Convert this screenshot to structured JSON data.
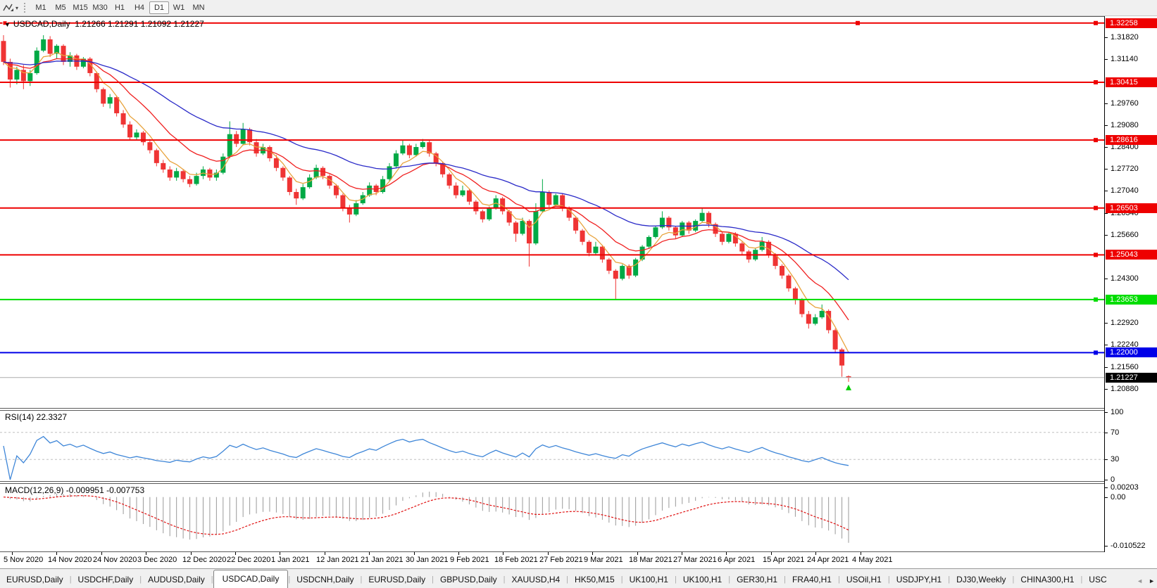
{
  "toolbar": {
    "dropdown_arrow": "▾",
    "timeframes": [
      "M1",
      "M5",
      "M15",
      "M30",
      "H1",
      "H4",
      "D1",
      "W1",
      "MN"
    ],
    "active_timeframe": "D1"
  },
  "chart": {
    "marker": "▼",
    "symbol_label": "USDCAD,Daily",
    "ohlc_label": "1.21266 1.21291 1.21092 1.21227"
  },
  "price_axis": {
    "plain_ticks": [
      "1.31820",
      "1.31140",
      "1.29760",
      "1.29080",
      "1.28400",
      "1.27720",
      "1.27040",
      "1.26340",
      "1.25660",
      "1.24300",
      "1.22920",
      "1.22240",
      "1.21560",
      "1.20880"
    ],
    "current": {
      "text": "1.21227",
      "bg": "#000000"
    }
  },
  "rsi": {
    "label": "RSI(14) 22.3327",
    "axis_ticks": [
      {
        "text": "100",
        "value": 100
      },
      {
        "text": "70",
        "value": 70
      },
      {
        "text": "30",
        "value": 30
      },
      {
        "text": "0",
        "value": 0
      }
    ],
    "line_color": "#3E86D8",
    "level_color": "#C0C0C0"
  },
  "macd": {
    "label": "MACD(12,26,9) -0.009951 -0.007753",
    "axis_ticks": [
      {
        "text": "0.00203",
        "value": 0.00203
      },
      {
        "text": "0.00",
        "value": 0.0
      },
      {
        "text": "-0.010522",
        "value": -0.010522
      }
    ],
    "histogram_color": "#999999",
    "signal_color": "#E01010"
  },
  "tabs": {
    "items": [
      "EURUSD,Daily",
      "USDCHF,Daily",
      "AUDUSD,Daily",
      "USDCAD,Daily",
      "USDCNH,Daily",
      "EURUSD,Daily",
      "GBPUSD,Daily",
      "XAUUSD,H4",
      "HK50,M15",
      "UK100,H1",
      "UK100,H1",
      "GER30,H1",
      "FRA40,H1",
      "USOil,H1",
      "USDJPY,H1",
      "DJ30,Weekly",
      "CHINA300,H1",
      "USC"
    ],
    "active_index": 3,
    "scroll_left": "◄",
    "scroll_right": "►"
  },
  "chart_data": {
    "type": "candlestick",
    "symbol": "USDCAD",
    "timeframe": "Daily",
    "ohlc_current": {
      "open": 1.21266,
      "high": 1.21291,
      "low": 1.21092,
      "close": 1.21227
    },
    "ylim": [
      1.2028,
      1.3245
    ],
    "up_color": "#00A945",
    "down_color": "#EF3434",
    "levels": [
      {
        "price": 1.32258,
        "color": "#EE0000",
        "label": "1.32258"
      },
      {
        "price": 1.30415,
        "color": "#EE0000",
        "label": "1.30415"
      },
      {
        "price": 1.28616,
        "color": "#EE0000",
        "label": "1.28616"
      },
      {
        "price": 1.26503,
        "color": "#EE0000",
        "label": "1.26503"
      },
      {
        "price": 1.25043,
        "color": "#EE0000",
        "label": "1.25043"
      },
      {
        "price": 1.23653,
        "color": "#00DD00",
        "label": "1.23653"
      },
      {
        "price": 1.22,
        "color": "#0000E8",
        "label": "1.22000"
      }
    ],
    "current_price": 1.21227,
    "moving_averages": [
      {
        "period": 5,
        "color": "#E8A33C",
        "name": "fast"
      },
      {
        "period": 13,
        "color": "#F02020",
        "name": "medium"
      },
      {
        "period": 34,
        "color": "#2A2AC8",
        "name": "slow"
      }
    ],
    "indicators": [
      {
        "name": "RSI",
        "period": 14,
        "value": 22.3327,
        "levels": [
          70,
          30
        ]
      },
      {
        "name": "MACD",
        "fast": 12,
        "slow": 26,
        "signal": 9,
        "value": -0.009951,
        "signal_value": -0.007753,
        "range": [
          -0.010522,
          0.00203
        ]
      }
    ],
    "last_candle_arrow": {
      "color": "#00CC00"
    },
    "x_dates": [
      "5 Nov 2020",
      "14 Nov 2020",
      "24 Nov 2020",
      "3 Dec 2020",
      "12 Dec 2020",
      "22 Dec 2020",
      "1 Jan 2021",
      "12 Jan 2021",
      "21 Jan 2021",
      "30 Jan 2021",
      "9 Feb 2021",
      "18 Feb 2021",
      "27 Feb 2021",
      "9 Mar 2021",
      "18 Mar 2021",
      "27 Mar 2021",
      "6 Apr 2021",
      "15 Apr 2021",
      "24 Apr 2021",
      "4 May 2021"
    ],
    "candles": [
      [
        1.317,
        1.3188,
        1.3095,
        1.3105
      ],
      [
        1.3105,
        1.3115,
        1.3025,
        1.305
      ],
      [
        1.305,
        1.309,
        1.3035,
        1.308
      ],
      [
        1.308,
        1.3095,
        1.302,
        1.3045
      ],
      [
        1.3045,
        1.308,
        1.303,
        1.307
      ],
      [
        1.307,
        1.315,
        1.3065,
        1.314
      ],
      [
        1.314,
        1.3188,
        1.3135,
        1.3175
      ],
      [
        1.3175,
        1.3185,
        1.312,
        1.313
      ],
      [
        1.313,
        1.316,
        1.3115,
        1.3155
      ],
      [
        1.3155,
        1.316,
        1.3095,
        1.3105
      ],
      [
        1.3105,
        1.3135,
        1.309,
        1.3125
      ],
      [
        1.3125,
        1.313,
        1.308,
        1.309
      ],
      [
        1.309,
        1.312,
        1.3085,
        1.3115
      ],
      [
        1.3115,
        1.312,
        1.306,
        1.307
      ],
      [
        1.307,
        1.3075,
        1.301,
        1.302
      ],
      [
        1.302,
        1.3025,
        1.2965,
        1.2975
      ],
      [
        1.2975,
        1.3005,
        1.296,
        1.2995
      ],
      [
        1.2995,
        1.3,
        1.2935,
        1.2945
      ],
      [
        1.2945,
        1.2955,
        1.29,
        1.291
      ],
      [
        1.291,
        1.292,
        1.286,
        1.287
      ],
      [
        1.287,
        1.2895,
        1.286,
        1.2885
      ],
      [
        1.2885,
        1.289,
        1.2845,
        1.2855
      ],
      [
        1.2855,
        1.2865,
        1.282,
        1.283
      ],
      [
        1.283,
        1.2835,
        1.278,
        1.279
      ],
      [
        1.279,
        1.28,
        1.276,
        1.277
      ],
      [
        1.277,
        1.278,
        1.2735,
        1.2745
      ],
      [
        1.2745,
        1.2775,
        1.2735,
        1.2765
      ],
      [
        1.2765,
        1.277,
        1.273,
        1.274
      ],
      [
        1.274,
        1.275,
        1.2715,
        1.2725
      ],
      [
        1.2725,
        1.276,
        1.272,
        1.275
      ],
      [
        1.275,
        1.278,
        1.274,
        1.277
      ],
      [
        1.277,
        1.2775,
        1.2735,
        1.2745
      ],
      [
        1.2745,
        1.277,
        1.2735,
        1.276
      ],
      [
        1.276,
        1.282,
        1.2755,
        1.281
      ],
      [
        1.281,
        1.292,
        1.2805,
        1.288
      ],
      [
        1.288,
        1.289,
        1.284,
        1.285
      ],
      [
        1.285,
        1.2915,
        1.2845,
        1.2895
      ],
      [
        1.2895,
        1.29,
        1.2845,
        1.2855
      ],
      [
        1.2855,
        1.2865,
        1.281,
        1.282
      ],
      [
        1.282,
        1.285,
        1.2815,
        1.284
      ],
      [
        1.284,
        1.2845,
        1.2795,
        1.2805
      ],
      [
        1.2805,
        1.2815,
        1.2765,
        1.2775
      ],
      [
        1.2775,
        1.278,
        1.2735,
        1.2745
      ],
      [
        1.2745,
        1.275,
        1.269,
        1.27
      ],
      [
        1.27,
        1.271,
        1.266,
        1.268
      ],
      [
        1.268,
        1.2725,
        1.2675,
        1.2715
      ],
      [
        1.2715,
        1.2755,
        1.271,
        1.2745
      ],
      [
        1.2745,
        1.2785,
        1.274,
        1.2775
      ],
      [
        1.2775,
        1.278,
        1.274,
        1.275
      ],
      [
        1.275,
        1.2755,
        1.271,
        1.272
      ],
      [
        1.272,
        1.2725,
        1.268,
        1.269
      ],
      [
        1.269,
        1.2695,
        1.264,
        1.265
      ],
      [
        1.265,
        1.266,
        1.2605,
        1.263
      ],
      [
        1.263,
        1.2675,
        1.2625,
        1.2665
      ],
      [
        1.2665,
        1.27,
        1.266,
        1.269
      ],
      [
        1.269,
        1.273,
        1.2685,
        1.272
      ],
      [
        1.272,
        1.2725,
        1.269,
        1.27
      ],
      [
        1.27,
        1.275,
        1.2695,
        1.274
      ],
      [
        1.274,
        1.279,
        1.2735,
        1.278
      ],
      [
        1.278,
        1.283,
        1.2775,
        1.282
      ],
      [
        1.282,
        1.286,
        1.2815,
        1.2845
      ],
      [
        1.2845,
        1.285,
        1.2805,
        1.2815
      ],
      [
        1.2815,
        1.285,
        1.281,
        1.284
      ],
      [
        1.284,
        1.2865,
        1.2835,
        1.2855
      ],
      [
        1.2855,
        1.286,
        1.281,
        1.282
      ],
      [
        1.282,
        1.2825,
        1.278,
        1.279
      ],
      [
        1.279,
        1.2795,
        1.2745,
        1.2755
      ],
      [
        1.2755,
        1.276,
        1.271,
        1.272
      ],
      [
        1.272,
        1.273,
        1.268,
        1.269
      ],
      [
        1.269,
        1.272,
        1.2685,
        1.2705
      ],
      [
        1.2705,
        1.271,
        1.266,
        1.267
      ],
      [
        1.267,
        1.2675,
        1.263,
        1.264
      ],
      [
        1.264,
        1.2645,
        1.2605,
        1.2615
      ],
      [
        1.2615,
        1.2655,
        1.261,
        1.265
      ],
      [
        1.265,
        1.269,
        1.2645,
        1.268
      ],
      [
        1.268,
        1.2685,
        1.263,
        1.264
      ],
      [
        1.264,
        1.2645,
        1.2595,
        1.2605
      ],
      [
        1.2605,
        1.261,
        1.2545,
        1.257
      ],
      [
        1.257,
        1.262,
        1.2565,
        1.261
      ],
      [
        1.261,
        1.2615,
        1.2468,
        1.254
      ],
      [
        1.254,
        1.2665,
        1.2535,
        1.264
      ],
      [
        1.264,
        1.274,
        1.2635,
        1.27
      ],
      [
        1.27,
        1.2705,
        1.265,
        1.266
      ],
      [
        1.266,
        1.2695,
        1.2655,
        1.269
      ],
      [
        1.269,
        1.2695,
        1.264,
        1.265
      ],
      [
        1.265,
        1.2655,
        1.261,
        1.262
      ],
      [
        1.262,
        1.2625,
        1.257,
        1.258
      ],
      [
        1.258,
        1.2585,
        1.2535,
        1.2545
      ],
      [
        1.2545,
        1.255,
        1.25,
        1.251
      ],
      [
        1.251,
        1.2545,
        1.2505,
        1.253
      ],
      [
        1.253,
        1.2535,
        1.248,
        1.249
      ],
      [
        1.249,
        1.2495,
        1.2445,
        1.2455
      ],
      [
        1.2455,
        1.246,
        1.2365,
        1.243
      ],
      [
        1.243,
        1.2475,
        1.2425,
        1.247
      ],
      [
        1.247,
        1.2475,
        1.243,
        1.244
      ],
      [
        1.244,
        1.2495,
        1.2435,
        1.249
      ],
      [
        1.249,
        1.2535,
        1.2485,
        1.253
      ],
      [
        1.253,
        1.2565,
        1.2525,
        1.256
      ],
      [
        1.256,
        1.2595,
        1.2555,
        1.259
      ],
      [
        1.259,
        1.264,
        1.2585,
        1.262
      ],
      [
        1.262,
        1.2625,
        1.258,
        1.259
      ],
      [
        1.259,
        1.2595,
        1.2555,
        1.2565
      ],
      [
        1.2565,
        1.261,
        1.256,
        1.2605
      ],
      [
        1.2605,
        1.261,
        1.257,
        1.258
      ],
      [
        1.258,
        1.2615,
        1.2575,
        1.261
      ],
      [
        1.261,
        1.265,
        1.2605,
        1.2635
      ],
      [
        1.2635,
        1.264,
        1.259,
        1.26
      ],
      [
        1.26,
        1.2605,
        1.256,
        1.257
      ],
      [
        1.257,
        1.2575,
        1.2535,
        1.2545
      ],
      [
        1.2545,
        1.2575,
        1.254,
        1.257
      ],
      [
        1.257,
        1.2575,
        1.253,
        1.254
      ],
      [
        1.254,
        1.2545,
        1.2505,
        1.2515
      ],
      [
        1.2515,
        1.252,
        1.248,
        1.249
      ],
      [
        1.249,
        1.2525,
        1.2485,
        1.252
      ],
      [
        1.252,
        1.256,
        1.2515,
        1.2545
      ],
      [
        1.2545,
        1.255,
        1.2495,
        1.2505
      ],
      [
        1.2505,
        1.251,
        1.246,
        1.247
      ],
      [
        1.247,
        1.2475,
        1.243,
        1.244
      ],
      [
        1.244,
        1.2445,
        1.239,
        1.24
      ],
      [
        1.24,
        1.2405,
        1.235,
        1.2365
      ],
      [
        1.2365,
        1.237,
        1.231,
        1.232
      ],
      [
        1.232,
        1.233,
        1.2275,
        1.229
      ],
      [
        1.229,
        1.232,
        1.2285,
        1.231
      ],
      [
        1.231,
        1.235,
        1.2305,
        1.233
      ],
      [
        1.233,
        1.2335,
        1.226,
        1.227
      ],
      [
        1.227,
        1.2275,
        1.22,
        1.221
      ],
      [
        1.221,
        1.2215,
        1.2125,
        1.216
      ],
      [
        1.21266,
        1.21291,
        1.21092,
        1.21227
      ]
    ]
  }
}
